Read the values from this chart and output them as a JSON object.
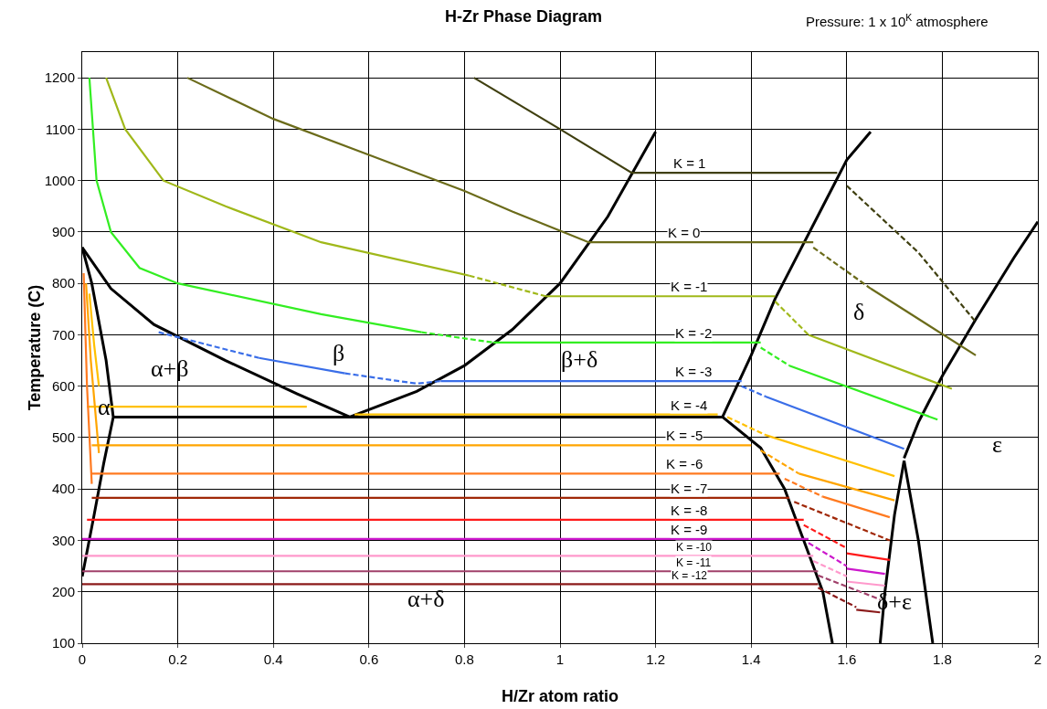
{
  "chart_data": {
    "type": "line",
    "title": "H-Zr Phase Diagram",
    "subtitle": "Pressure: 1 x 10$^{K}$ atmosphere",
    "xlabel": "H/Zr atom ratio",
    "ylabel": "Temperature (C)",
    "xlim": [
      0,
      2
    ],
    "xticks": [
      0,
      0.2,
      0.4,
      0.6,
      0.8,
      1,
      1.2,
      1.4,
      1.6,
      1.8,
      2
    ],
    "ylim": [
      100,
      1250
    ],
    "yticks": [
      100,
      200,
      300,
      400,
      500,
      600,
      700,
      800,
      900,
      1000,
      1100,
      1200
    ],
    "grid": true,
    "marker": "none",
    "line_style": "solid",
    "series": [
      {
        "color": "#000000",
        "x": [
          0,
          0.02,
          0.05,
          0.065,
          0.045,
          0.025,
          0
        ],
        "values": [
          870,
          800,
          650,
          540,
          450,
          350,
          230
        ]
      },
      {
        "color": "#000000",
        "x": [
          0,
          0.06,
          0.15,
          0.3,
          0.45,
          0.56
        ],
        "values": [
          870,
          790,
          720,
          650,
          585,
          540
        ]
      },
      {
        "color": "#000000",
        "x": [
          0.56,
          0.7,
          0.8,
          0.9,
          1.0,
          1.1,
          1.2
        ],
        "values": [
          540,
          590,
          640,
          710,
          800,
          930,
          1095
        ]
      },
      {
        "color": "#000000",
        "x": [
          0.065,
          1.34
        ],
        "values": [
          540,
          540
        ]
      },
      {
        "color": "#000000",
        "x": [
          1.34,
          1.4,
          1.45,
          1.5,
          1.55,
          1.6,
          1.65
        ],
        "values": [
          540,
          660,
          770,
          860,
          950,
          1040,
          1095
        ]
      },
      {
        "color": "#000000",
        "x": [
          1.34,
          1.42,
          1.47,
          1.51,
          1.55,
          1.57
        ],
        "values": [
          540,
          480,
          400,
          300,
          200,
          100
        ]
      },
      {
        "color": "#000000",
        "x": [
          1.72,
          1.7,
          1.68,
          1.67
        ],
        "values": [
          455,
          350,
          200,
          100
        ]
      },
      {
        "color": "#000000",
        "x": [
          1.72,
          1.75,
          1.78
        ],
        "values": [
          455,
          300,
          100
        ]
      },
      {
        "color": "#000000",
        "x": [
          1.72,
          1.75,
          1.8,
          1.87,
          1.95,
          2
        ],
        "values": [
          460,
          530,
          620,
          730,
          850,
          920
        ]
      },
      {
        "color": "#3f3f10",
        "x": [
          0.82,
          1.0,
          1.15,
          1.58
        ],
        "values": [
          1200,
          1100,
          1015,
          1015
        ]
      },
      {
        "color": "#3f3f10",
        "line_style": "dashed",
        "x": [
          1.6,
          1.75,
          1.87
        ],
        "values": [
          990,
          860,
          725
        ]
      },
      {
        "color": "#6b6b1a",
        "x": [
          0.22,
          0.4,
          0.6,
          0.8,
          0.9,
          1.06,
          1.53
        ],
        "values": [
          1200,
          1120,
          1050,
          980,
          940,
          880,
          880
        ]
      },
      {
        "color": "#6b6b1a",
        "line_style": "dashed",
        "x": [
          1.53,
          1.65
        ],
        "values": [
          870,
          790
        ]
      },
      {
        "color": "#6b6b1a",
        "x": [
          1.65,
          1.87
        ],
        "values": [
          790,
          660
        ]
      },
      {
        "color": "#a0b81a",
        "x": [
          0.05,
          0.09,
          0.17,
          0.3,
          0.5,
          0.81
        ],
        "values": [
          1200,
          1100,
          1000,
          950,
          880,
          815
        ]
      },
      {
        "color": "#a0b81a",
        "line_style": "dashed",
        "x": [
          0.81,
          0.97
        ],
        "values": [
          815,
          775
        ]
      },
      {
        "color": "#a0b81a",
        "x": [
          0.97,
          1.45
        ],
        "values": [
          775,
          775
        ]
      },
      {
        "color": "#a0b81a",
        "line_style": "dashed",
        "x": [
          1.45,
          1.52
        ],
        "values": [
          765,
          700
        ]
      },
      {
        "color": "#a0b81a",
        "x": [
          1.52,
          1.82
        ],
        "values": [
          700,
          595
        ]
      },
      {
        "color": "#33ee22",
        "x": [
          0.015,
          0.03,
          0.06,
          0.12,
          0.2,
          0.5,
          0.71
        ],
        "values": [
          1200,
          1000,
          900,
          830,
          800,
          740,
          705
        ]
      },
      {
        "color": "#33ee22",
        "line_style": "dashed",
        "x": [
          0.71,
          0.86
        ],
        "values": [
          705,
          685
        ]
      },
      {
        "color": "#33ee22",
        "x": [
          0.86,
          1.42
        ],
        "values": [
          685,
          685
        ]
      },
      {
        "color": "#33ee22",
        "line_style": "dashed",
        "x": [
          1.42,
          1.48
        ],
        "values": [
          675,
          640
        ]
      },
      {
        "color": "#33ee22",
        "x": [
          1.48,
          1.79
        ],
        "values": [
          640,
          535
        ]
      },
      {
        "color": "#3a6ee8",
        "line_style": "dashed",
        "x": [
          0.16,
          0.37
        ],
        "values": [
          705,
          655
        ]
      },
      {
        "color": "#3a6ee8",
        "x": [
          0.37,
          0.55
        ],
        "values": [
          655,
          625
        ]
      },
      {
        "color": "#3a6ee8",
        "line_style": "dashed",
        "x": [
          0.55,
          0.7,
          0.75
        ],
        "values": [
          625,
          605,
          610
        ]
      },
      {
        "color": "#3a6ee8",
        "x": [
          0.75,
          1.38
        ],
        "values": [
          610,
          610
        ]
      },
      {
        "color": "#3a6ee8",
        "line_style": "dashed",
        "x": [
          1.38,
          1.43
        ],
        "values": [
          600,
          580
        ]
      },
      {
        "color": "#3a6ee8",
        "x": [
          1.43,
          1.72
        ],
        "values": [
          580,
          478
        ]
      },
      {
        "color": "#ffc000",
        "x": [
          0.015,
          0.025,
          0.035
        ],
        "values": [
          780,
          680,
          600
        ]
      },
      {
        "color": "#ffc000",
        "x": [
          0.01,
          0.47
        ],
        "values": [
          560,
          560
        ]
      },
      {
        "color": "#ffc000",
        "x": [
          0.57,
          1.33
        ],
        "values": [
          545,
          545
        ]
      },
      {
        "color": "#ffc000",
        "line_style": "dashed",
        "x": [
          1.35,
          1.43
        ],
        "values": [
          540,
          505
        ]
      },
      {
        "color": "#ffc000",
        "x": [
          1.43,
          1.7
        ],
        "values": [
          505,
          425
        ]
      },
      {
        "color": "#ffa500",
        "x": [
          0.008,
          0.018,
          0.035
        ],
        "values": [
          800,
          650,
          470
        ]
      },
      {
        "color": "#ffa500",
        "x": [
          0.02,
          1.4
        ],
        "values": [
          485,
          485
        ]
      },
      {
        "color": "#ffa500",
        "line_style": "dashed",
        "x": [
          1.42,
          1.5
        ],
        "values": [
          475,
          430
        ]
      },
      {
        "color": "#ffa500",
        "x": [
          1.5,
          1.7
        ],
        "values": [
          430,
          378
        ]
      },
      {
        "color": "#ff7a20",
        "x": [
          0.003,
          0.01,
          0.02
        ],
        "values": [
          820,
          600,
          410
        ]
      },
      {
        "color": "#ff7a20",
        "x": [
          0.02,
          1.46
        ],
        "values": [
          430,
          430
        ]
      },
      {
        "color": "#ff7a20",
        "line_style": "dashed",
        "x": [
          1.47,
          1.55
        ],
        "values": [
          420,
          385
        ]
      },
      {
        "color": "#ff7a20",
        "x": [
          1.55,
          1.69
        ],
        "values": [
          385,
          345
        ]
      },
      {
        "color": "#a02808",
        "x": [
          0.02,
          1.48
        ],
        "values": [
          383,
          383
        ]
      },
      {
        "color": "#a02808",
        "line_style": "dashed",
        "x": [
          1.49,
          1.69
        ],
        "values": [
          375,
          300
        ]
      },
      {
        "color": "#ff1a1a",
        "x": [
          0.01,
          1.51
        ],
        "values": [
          340,
          340
        ]
      },
      {
        "color": "#ff1a1a",
        "line_style": "dashed",
        "x": [
          1.51,
          1.6
        ],
        "values": [
          330,
          285
        ]
      },
      {
        "color": "#ff1a1a",
        "x": [
          1.6,
          1.69
        ],
        "values": [
          275,
          262
        ]
      },
      {
        "color": "#cc18cc",
        "x": [
          0,
          1.52
        ],
        "values": [
          303,
          303
        ]
      },
      {
        "color": "#cc18cc",
        "line_style": "dashed",
        "x": [
          1.52,
          1.6
        ],
        "values": [
          295,
          250
        ]
      },
      {
        "color": "#cc18cc",
        "x": [
          1.6,
          1.68
        ],
        "values": [
          245,
          235
        ]
      },
      {
        "color": "#ff99cc",
        "x": [
          0,
          1.53
        ],
        "values": [
          270,
          270
        ]
      },
      {
        "color": "#ff99cc",
        "line_style": "dashed",
        "x": [
          1.53,
          1.6
        ],
        "values": [
          260,
          230
        ]
      },
      {
        "color": "#ff99cc",
        "x": [
          1.6,
          1.68
        ],
        "values": [
          220,
          212
        ]
      },
      {
        "color": "#a0406a",
        "x": [
          0,
          1.54
        ],
        "values": [
          240,
          240
        ]
      },
      {
        "color": "#a0406a",
        "line_style": "dashed",
        "x": [
          1.54,
          1.67
        ],
        "values": [
          232,
          185
        ]
      },
      {
        "color": "#8b1a1a",
        "x": [
          0,
          1.54
        ],
        "values": [
          215,
          215
        ]
      },
      {
        "color": "#8b1a1a",
        "line_style": "dashed",
        "x": [
          1.54,
          1.62
        ],
        "values": [
          208,
          170
        ]
      },
      {
        "color": "#8b1a1a",
        "x": [
          1.62,
          1.67
        ],
        "values": [
          165,
          160
        ]
      }
    ],
    "annotations": [
      {
        "text": "K = 1",
        "x": 1.27,
        "y": 1015
      },
      {
        "text": "K = 0",
        "x": 1.26,
        "y": 880
      },
      {
        "text": "K = -1",
        "x": 1.27,
        "y": 775
      },
      {
        "text": "K = -2",
        "x": 1.28,
        "y": 685
      },
      {
        "text": "K = -3",
        "x": 1.28,
        "y": 610
      },
      {
        "text": "K = -4",
        "x": 1.27,
        "y": 545
      },
      {
        "text": "K = -5",
        "x": 1.26,
        "y": 485
      },
      {
        "text": "K = -6",
        "x": 1.26,
        "y": 430
      },
      {
        "text": "K = -7",
        "x": 1.27,
        "y": 383
      },
      {
        "text": "K = -8",
        "x": 1.27,
        "y": 340
      },
      {
        "text": "K = -9",
        "x": 1.27,
        "y": 303
      },
      {
        "text": "K = -10",
        "x": 1.28,
        "y": 270
      },
      {
        "text": "K = -11",
        "x": 1.28,
        "y": 240
      },
      {
        "text": "K = -12",
        "x": 1.27,
        "y": 215
      },
      "α+β",
      "α",
      "β",
      "β+δ",
      "δ",
      "ε",
      "α+δ",
      "δ+ε"
    ]
  }
}
